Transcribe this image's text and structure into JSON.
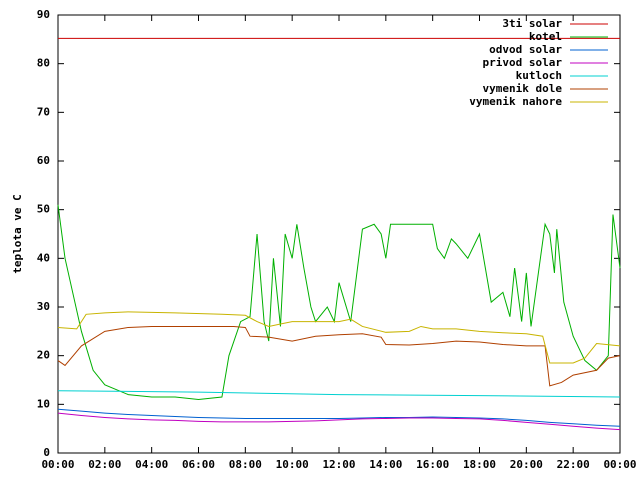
{
  "chart_data": {
    "type": "line",
    "ylabel": "teplota ve C",
    "xlim": [
      0,
      24
    ],
    "ylim": [
      0,
      90
    ],
    "xticks": [
      {
        "value": 0,
        "label": "00:00"
      },
      {
        "value": 2,
        "label": "02:00"
      },
      {
        "value": 4,
        "label": "04:00"
      },
      {
        "value": 6,
        "label": "06:00"
      },
      {
        "value": 8,
        "label": "08:00"
      },
      {
        "value": 10,
        "label": "10:00"
      },
      {
        "value": 12,
        "label": "12:00"
      },
      {
        "value": 14,
        "label": "14:00"
      },
      {
        "value": 16,
        "label": "16:00"
      },
      {
        "value": 18,
        "label": "18:00"
      },
      {
        "value": 20,
        "label": "20:00"
      },
      {
        "value": 22,
        "label": "22:00"
      },
      {
        "value": 24,
        "label": "00:00"
      }
    ],
    "yticks": [
      0,
      10,
      20,
      30,
      40,
      50,
      60,
      70,
      80,
      90
    ],
    "grid": false,
    "legend": "top-right",
    "series": [
      {
        "name": "3ti solar",
        "color": "#cc0000",
        "x": [
          0,
          24
        ],
        "values": [
          85.2,
          85.2
        ]
      },
      {
        "name": "kotel",
        "color": "#00b000",
        "x": [
          0,
          0.3,
          1,
          1.5,
          2,
          3,
          4,
          5,
          6,
          7,
          7.3,
          7.8,
          8.2,
          8.5,
          8.8,
          9,
          9.2,
          9.5,
          9.7,
          10,
          10.2,
          10.5,
          10.8,
          11,
          11.5,
          11.8,
          12,
          12.5,
          13,
          13.5,
          13.8,
          14,
          14.2,
          15,
          16,
          16.2,
          16.5,
          16.8,
          17,
          17.5,
          18,
          18.5,
          19,
          19.3,
          19.5,
          19.8,
          20,
          20.2,
          20.8,
          21,
          21.2,
          21.3,
          21.6,
          22,
          22.5,
          23,
          23.5,
          23.7,
          24
        ],
        "values": [
          51,
          40,
          25,
          17,
          14,
          12,
          11.5,
          11.5,
          11,
          11.5,
          20,
          27,
          28,
          45,
          27,
          23,
          40,
          26,
          45,
          40,
          47,
          38,
          30,
          27,
          30,
          27,
          35,
          27,
          46,
          47,
          45,
          40,
          47,
          47,
          47,
          42,
          40,
          44,
          43,
          40,
          45,
          31,
          33,
          28,
          38,
          27,
          37,
          26,
          47,
          45,
          37,
          46,
          31,
          24,
          19,
          17,
          20,
          49,
          38
        ]
      },
      {
        "name": "odvod solar",
        "color": "#0060d0",
        "x": [
          0,
          1,
          2,
          3,
          4,
          5,
          6,
          7,
          8,
          9,
          10,
          11,
          12,
          13,
          14,
          15,
          16,
          17,
          18,
          19,
          20,
          21,
          22,
          23,
          24
        ],
        "values": [
          9,
          8.6,
          8.2,
          7.9,
          7.7,
          7.5,
          7.3,
          7.2,
          7.1,
          7.1,
          7.1,
          7.1,
          7.1,
          7.2,
          7.3,
          7.3,
          7.4,
          7.3,
          7.2,
          7,
          6.7,
          6.3,
          6,
          5.7,
          5.5
        ]
      },
      {
        "name": "privod solar",
        "color": "#c000c0",
        "x": [
          0,
          1,
          2,
          3,
          4,
          5,
          6,
          7,
          8,
          9,
          10,
          11,
          12,
          13,
          14,
          15,
          16,
          17,
          18,
          19,
          20,
          21,
          22,
          23,
          24
        ],
        "values": [
          8.2,
          7.7,
          7.3,
          7,
          6.8,
          6.7,
          6.5,
          6.4,
          6.4,
          6.4,
          6.5,
          6.6,
          6.8,
          7,
          7.1,
          7.2,
          7.2,
          7.1,
          7,
          6.7,
          6.3,
          5.9,
          5.5,
          5.1,
          4.8
        ]
      },
      {
        "name": "kutloch",
        "color": "#00d0d0",
        "x": [
          0,
          6,
          12,
          18,
          24
        ],
        "values": [
          12.8,
          12.5,
          12,
          11.8,
          11.5
        ]
      },
      {
        "name": "vymenik dole",
        "color": "#b04000",
        "x": [
          0,
          0.3,
          1,
          2,
          3,
          4,
          6,
          7.5,
          8,
          8.2,
          9,
          10,
          11,
          12,
          13,
          13.8,
          14,
          15,
          16,
          17,
          18,
          19,
          20,
          20.8,
          21,
          21.5,
          22,
          23,
          23.5,
          24
        ],
        "values": [
          19,
          18,
          22,
          25,
          25.8,
          26,
          26,
          26,
          25.8,
          24,
          23.8,
          23,
          24,
          24.3,
          24.5,
          23.8,
          22.3,
          22.2,
          22.5,
          23,
          22.8,
          22.3,
          22,
          22,
          13.8,
          14.5,
          16,
          17,
          19.5,
          20
        ]
      },
      {
        "name": "vymenik nahore",
        "color": "#c8b400",
        "x": [
          0,
          0.8,
          1.2,
          2,
          3,
          5,
          7,
          8,
          8.5,
          9,
          9.5,
          10,
          12,
          12.5,
          13,
          14,
          15,
          15.5,
          16,
          17,
          18,
          19,
          20,
          20.7,
          21,
          22,
          22.5,
          23,
          24
        ],
        "values": [
          25.8,
          25.5,
          28.5,
          28.8,
          29,
          28.8,
          28.5,
          28.3,
          27,
          26,
          26.5,
          27,
          27,
          27.5,
          26,
          24.8,
          25,
          26,
          25.5,
          25.5,
          25,
          24.7,
          24.5,
          24,
          18.5,
          18.5,
          19.5,
          22.5,
          22
        ]
      }
    ]
  }
}
